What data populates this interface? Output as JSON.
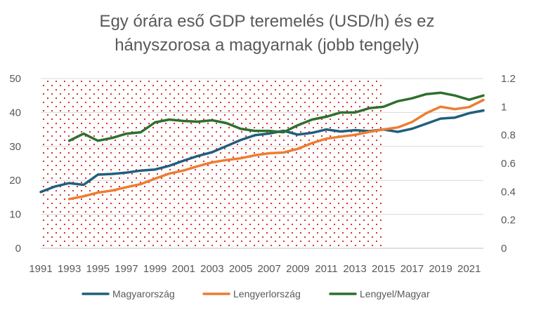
{
  "chart_data": {
    "type": "line",
    "title_line1": "Egy órára eső GDP teremelés (USD/h) és ez",
    "title_line2": "hányszorosa a magyarnak (jobb tengely)",
    "y_left": {
      "min": 0,
      "max": 50,
      "ticks": [
        "0",
        "10",
        "20",
        "30",
        "40",
        "50"
      ]
    },
    "y_right": {
      "min": 0,
      "max": 1.2,
      "ticks": [
        "0",
        "0.2",
        "0.4",
        "0.6",
        "0.8",
        "1",
        "1.2"
      ]
    },
    "x_range": [
      1991,
      2022
    ],
    "x_tick_labels": [
      "1991",
      "1993",
      "1995",
      "1997",
      "1999",
      "2001",
      "2003",
      "2005",
      "2007",
      "2009",
      "2011",
      "2013",
      "2015",
      "2017",
      "2019",
      "2021"
    ],
    "shaded_region": {
      "from": 1991,
      "to": 2015,
      "pattern": "red dots"
    },
    "grid": true,
    "legend_position": "bottom",
    "series": [
      {
        "name": "Magyarország",
        "color": "#1f5f7e",
        "axis": "left",
        "x": [
          1991,
          1992,
          1993,
          1994,
          1995,
          1996,
          1997,
          1998,
          1999,
          2000,
          2001,
          2002,
          2003,
          2004,
          2005,
          2006,
          2007,
          2008,
          2009,
          2010,
          2011,
          2012,
          2013,
          2014,
          2015,
          2016,
          2017,
          2018,
          2019,
          2020,
          2021,
          2022
        ],
        "values": [
          16.6,
          18.2,
          19.2,
          18.7,
          21.7,
          21.9,
          22.3,
          22.9,
          23.2,
          24.3,
          25.8,
          27.2,
          28.3,
          30.1,
          31.9,
          33.3,
          33.8,
          34.6,
          33.5,
          34.0,
          35.0,
          34.4,
          34.8,
          34.5,
          35.0,
          34.3,
          35.2,
          36.7,
          38.2,
          38.5,
          39.8,
          40.6
        ]
      },
      {
        "name": "Lengyerlország",
        "color": "#ed7d31",
        "axis": "left",
        "x": [
          1993,
          1994,
          1995,
          1996,
          1997,
          1998,
          1999,
          2000,
          2001,
          2002,
          2003,
          2004,
          2005,
          2006,
          2007,
          2008,
          2009,
          2010,
          2011,
          2012,
          2013,
          2014,
          2015,
          2016,
          2017,
          2018,
          2019,
          2020,
          2021,
          2022
        ],
        "values": [
          14.5,
          15.3,
          16.4,
          17.0,
          18.0,
          18.9,
          20.5,
          22.0,
          22.9,
          24.2,
          25.3,
          26.0,
          26.5,
          27.4,
          28.0,
          28.2,
          29.3,
          31.0,
          32.3,
          32.9,
          33.4,
          34.3,
          35.0,
          35.6,
          37.2,
          39.8,
          41.7,
          41.0,
          41.6,
          43.7
        ]
      },
      {
        "name": "Lengyel/Magyar",
        "color": "#2e6f2e",
        "axis": "right",
        "x": [
          1993,
          1994,
          1995,
          1996,
          1997,
          1998,
          1999,
          2000,
          2001,
          2002,
          2003,
          2004,
          2005,
          2006,
          2007,
          2008,
          2009,
          2010,
          2011,
          2012,
          2013,
          2014,
          2015,
          2016,
          2017,
          2018,
          2019,
          2020,
          2021,
          2022
        ],
        "values": [
          0.76,
          0.81,
          0.76,
          0.78,
          0.81,
          0.82,
          0.89,
          0.91,
          0.9,
          0.895,
          0.905,
          0.885,
          0.845,
          0.83,
          0.83,
          0.82,
          0.87,
          0.91,
          0.93,
          0.96,
          0.96,
          0.99,
          1.0,
          1.04,
          1.06,
          1.09,
          1.1,
          1.08,
          1.05,
          1.08
        ]
      }
    ]
  }
}
